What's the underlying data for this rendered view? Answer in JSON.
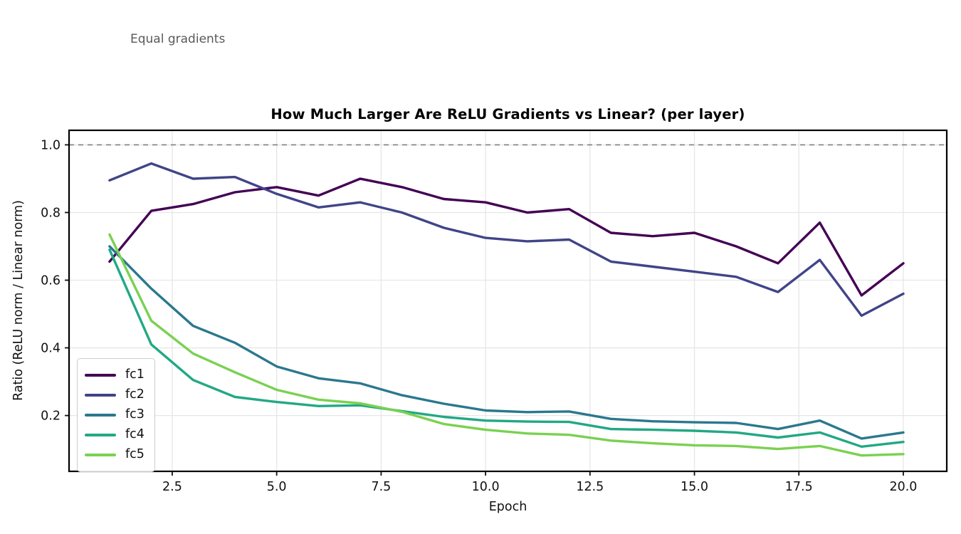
{
  "page": {
    "background": "#ffffff"
  },
  "chart_data": {
    "type": "line",
    "title": "How Much Larger Are ReLU Gradients vs Linear? (per layer)",
    "xlabel": "Epoch",
    "ylabel": "Ratio (ReLU norm / Linear norm)",
    "x": [
      1,
      2,
      3,
      4,
      5,
      6,
      7,
      8,
      9,
      10,
      11,
      12,
      13,
      14,
      15,
      16,
      17,
      18,
      19,
      20
    ],
    "xlim": [
      0.03,
      21.04
    ],
    "ylim": [
      0.035,
      1.043
    ],
    "xticks": [
      2.5,
      5.0,
      7.5,
      10.0,
      12.5,
      15.0,
      17.5,
      20.0
    ],
    "xtick_labels": [
      "2.5",
      "5.0",
      "7.5",
      "10.0",
      "12.5",
      "15.0",
      "17.5",
      "20.0"
    ],
    "yticks": [
      0.2,
      0.4,
      0.6,
      0.8,
      1.0
    ],
    "ytick_labels": [
      "0.2",
      "0.4",
      "0.6",
      "0.8",
      "1.0"
    ],
    "grid": true,
    "grid_color": "#e6e6e6",
    "legend_position": "lower left",
    "reference_line": {
      "y": 1.0,
      "label": "Equal gradients",
      "style": "dashed",
      "color": "#808080"
    },
    "series": [
      {
        "name": "fc1",
        "color": "#440154",
        "values": [
          0.655,
          0.805,
          0.825,
          0.86,
          0.875,
          0.85,
          0.9,
          0.875,
          0.84,
          0.83,
          0.8,
          0.81,
          0.74,
          0.73,
          0.74,
          0.7,
          0.65,
          0.77,
          0.555,
          0.65
        ]
      },
      {
        "name": "fc2",
        "color": "#414487",
        "values": [
          0.895,
          0.945,
          0.9,
          0.905,
          0.855,
          0.815,
          0.83,
          0.8,
          0.755,
          0.725,
          0.715,
          0.72,
          0.655,
          0.64,
          0.625,
          0.61,
          0.565,
          0.66,
          0.495,
          0.56
        ]
      },
      {
        "name": "fc3",
        "color": "#2a788e",
        "values": [
          0.7,
          0.575,
          0.465,
          0.415,
          0.345,
          0.31,
          0.295,
          0.26,
          0.235,
          0.215,
          0.21,
          0.212,
          0.19,
          0.183,
          0.18,
          0.178,
          0.16,
          0.185,
          0.132,
          0.15
        ]
      },
      {
        "name": "fc4",
        "color": "#22a884",
        "values": [
          0.69,
          0.41,
          0.305,
          0.255,
          0.24,
          0.228,
          0.23,
          0.213,
          0.196,
          0.185,
          0.182,
          0.181,
          0.16,
          0.158,
          0.155,
          0.15,
          0.135,
          0.15,
          0.108,
          0.122
        ]
      },
      {
        "name": "fc5",
        "color": "#7ad151",
        "values": [
          0.735,
          0.48,
          0.383,
          0.328,
          0.276,
          0.247,
          0.236,
          0.211,
          0.175,
          0.158,
          0.147,
          0.143,
          0.126,
          0.118,
          0.112,
          0.11,
          0.101,
          0.11,
          0.082,
          0.086
        ]
      }
    ]
  }
}
